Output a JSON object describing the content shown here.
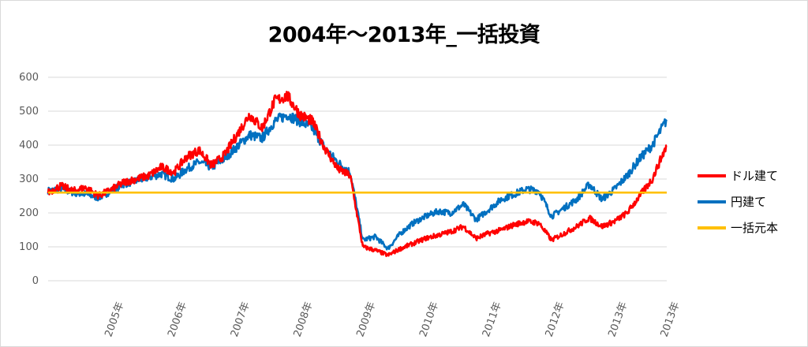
{
  "colors": {
    "usd": "#ff0000",
    "jpy": "#0070c0",
    "principal": "#ffc000",
    "grid": "#d9d9d9",
    "tick_text": "#595959"
  },
  "chart_data": {
    "type": "line",
    "title": "2004年～2013年_一括投資",
    "xlabel": "",
    "ylabel": "",
    "ylim": [
      0,
      600
    ],
    "yticks": [
      "0",
      "100",
      "200",
      "300",
      "400",
      "500",
      "600"
    ],
    "xlim": [
      2004.0,
      2013.83
    ],
    "xticks": [
      {
        "label": "2005年",
        "x": 2005.0
      },
      {
        "label": "2006年",
        "x": 2006.0
      },
      {
        "label": "2007年",
        "x": 2007.0
      },
      {
        "label": "2008年",
        "x": 2008.0
      },
      {
        "label": "2009年",
        "x": 2009.0
      },
      {
        "label": "2010年",
        "x": 2010.0
      },
      {
        "label": "2011年",
        "x": 2011.0
      },
      {
        "label": "2012年",
        "x": 2012.0
      },
      {
        "label": "2013年",
        "x": 2013.0
      },
      {
        "label": "2013年",
        "x": 2013.83
      }
    ],
    "grid": true,
    "legend_position": "right",
    "series": [
      {
        "name": "ドル建て",
        "color": "#ff0000",
        "x": [
          2004.0,
          2004.2,
          2004.4,
          2004.6,
          2004.8,
          2005.0,
          2005.2,
          2005.4,
          2005.6,
          2005.8,
          2006.0,
          2006.2,
          2006.4,
          2006.6,
          2006.8,
          2007.0,
          2007.2,
          2007.4,
          2007.6,
          2007.8,
          2008.0,
          2008.2,
          2008.4,
          2008.6,
          2008.8,
          2009.0,
          2009.2,
          2009.4,
          2009.6,
          2009.8,
          2010.0,
          2010.2,
          2010.4,
          2010.6,
          2010.8,
          2011.0,
          2011.2,
          2011.4,
          2011.6,
          2011.8,
          2012.0,
          2012.2,
          2012.4,
          2012.6,
          2012.8,
          2013.0,
          2013.2,
          2013.4,
          2013.6,
          2013.83
        ],
        "y": [
          260,
          280,
          265,
          275,
          250,
          268,
          290,
          300,
          310,
          335,
          320,
          365,
          385,
          340,
          370,
          430,
          490,
          450,
          530,
          545,
          490,
          470,
          390,
          330,
          310,
          100,
          90,
          75,
          95,
          110,
          125,
          135,
          145,
          160,
          125,
          140,
          150,
          165,
          175,
          170,
          120,
          140,
          160,
          185,
          160,
          175,
          200,
          250,
          300,
          400
        ]
      },
      {
        "name": "円建て",
        "color": "#0070c0",
        "x": [
          2004.0,
          2004.2,
          2004.4,
          2004.6,
          2004.8,
          2005.0,
          2005.2,
          2005.4,
          2005.6,
          2005.8,
          2006.0,
          2006.2,
          2006.4,
          2006.6,
          2006.8,
          2007.0,
          2007.2,
          2007.4,
          2007.6,
          2007.8,
          2008.0,
          2008.2,
          2008.4,
          2008.6,
          2008.8,
          2009.0,
          2009.2,
          2009.4,
          2009.6,
          2009.8,
          2010.0,
          2010.2,
          2010.4,
          2010.6,
          2010.8,
          2011.0,
          2011.2,
          2011.4,
          2011.6,
          2011.8,
          2012.0,
          2012.2,
          2012.4,
          2012.6,
          2012.8,
          2013.0,
          2013.2,
          2013.4,
          2013.6,
          2013.83
        ],
        "y": [
          265,
          270,
          260,
          255,
          245,
          265,
          285,
          295,
          305,
          315,
          300,
          330,
          350,
          335,
          360,
          395,
          430,
          420,
          470,
          490,
          470,
          450,
          390,
          350,
          320,
          120,
          130,
          95,
          140,
          170,
          190,
          205,
          200,
          225,
          180,
          210,
          240,
          255,
          270,
          265,
          190,
          215,
          240,
          285,
          240,
          270,
          310,
          360,
          400,
          475
        ]
      },
      {
        "name": "一括元本",
        "color": "#ffc000",
        "x": [
          2004.0,
          2013.83
        ],
        "y": [
          260,
          260
        ]
      }
    ]
  }
}
